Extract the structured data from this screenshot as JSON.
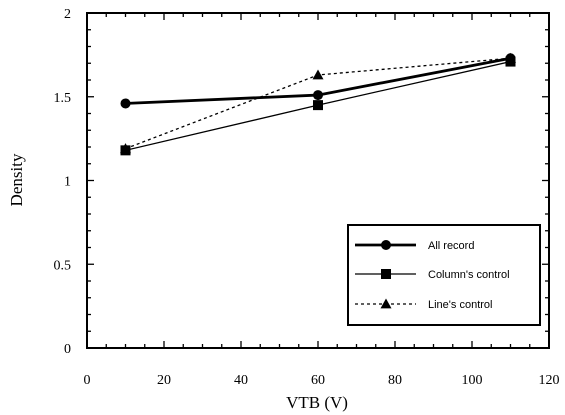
{
  "chart_data": {
    "type": "line",
    "xlabel": "VTB (V)",
    "ylabel": "Density",
    "xlim": [
      0,
      120
    ],
    "ylim": [
      0,
      2
    ],
    "xticks": [
      0,
      20,
      40,
      60,
      80,
      100,
      120
    ],
    "yticks": [
      0,
      0.5,
      1,
      1.5,
      2
    ],
    "x_tick_labels": [
      "0",
      "20",
      "40",
      "60",
      "80",
      "100",
      "120"
    ],
    "y_tick_labels": [
      "0",
      "0.5",
      "1",
      "1.5",
      "2"
    ],
    "x": [
      10,
      60,
      110
    ],
    "legend_position": "bottom-right",
    "grid": false,
    "series": [
      {
        "name": "All record",
        "values": [
          1.46,
          1.51,
          1.73
        ],
        "marker": "circle",
        "line_style": "solid",
        "line_weight": "thick",
        "color": "#000000"
      },
      {
        "name": "Column's control",
        "values": [
          1.18,
          1.45,
          1.71
        ],
        "marker": "square",
        "line_style": "solid",
        "line_weight": "thin",
        "color": "#000000"
      },
      {
        "name": "Line's control",
        "values": [
          1.19,
          1.63,
          1.73
        ],
        "marker": "triangle",
        "line_style": "dotted",
        "line_weight": "thin",
        "color": "#000000"
      }
    ]
  }
}
